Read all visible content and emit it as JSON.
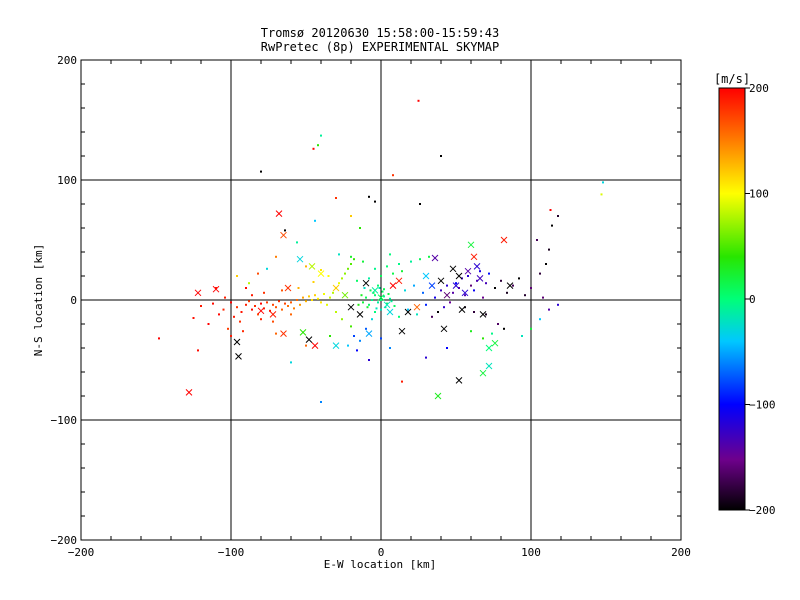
{
  "chart_data": {
    "type": "scatter",
    "title_line1": "Tromsø 20120630 15:58:00-15:59:43",
    "title_line2": "RwPretec (8p) EXPERIMENTAL SKYMAP",
    "xlabel": "E-W location [km]",
    "ylabel": "N-S location [km]",
    "xlim": [
      -200,
      200
    ],
    "ylim": [
      -200,
      200
    ],
    "xticks": [
      -200,
      -100,
      0,
      100,
      200
    ],
    "yticks": [
      -200,
      -100,
      0,
      100,
      200
    ],
    "x_tick_labels": [
      "−200",
      "−100",
      "0",
      "100",
      "200"
    ],
    "y_tick_labels": [
      "−200",
      "−100",
      "0",
      "100",
      "200"
    ],
    "grid": true,
    "colorbar": {
      "label": "[m/s]",
      "range": [
        -200,
        200
      ],
      "ticks": [
        200,
        100,
        0,
        -100,
        -200
      ],
      "tick_labels": [
        "200",
        "100",
        "0",
        "−100",
        "−200"
      ]
    },
    "markers": [
      "dot",
      "x"
    ],
    "points": [
      [
        -120,
        -5,
        190,
        "d"
      ],
      [
        -112,
        -3,
        195,
        "d"
      ],
      [
        -105,
        -8,
        185,
        "d"
      ],
      [
        -100,
        -2,
        200,
        "d"
      ],
      [
        -96,
        -6,
        180,
        "d"
      ],
      [
        -93,
        -10,
        192,
        "d"
      ],
      [
        -90,
        -4,
        188,
        "d"
      ],
      [
        -88,
        -1,
        176,
        "d"
      ],
      [
        -86,
        -8,
        196,
        "d"
      ],
      [
        -84,
        -5,
        184,
        "d"
      ],
      [
        -82,
        -12,
        170,
        "d"
      ],
      [
        -80,
        -3,
        198,
        "d"
      ],
      [
        -78,
        -7,
        186,
        "d"
      ],
      [
        -76,
        -2,
        178,
        "d"
      ],
      [
        -74,
        -9,
        190,
        "d"
      ],
      [
        -72,
        -4,
        174,
        "d"
      ],
      [
        -70,
        -6,
        168,
        "d"
      ],
      [
        -68,
        -1,
        182,
        "d"
      ],
      [
        -66,
        -8,
        160,
        "d"
      ],
      [
        -64,
        -3,
        172,
        "d"
      ],
      [
        -62,
        -5,
        156,
        "d"
      ],
      [
        -60,
        -2,
        164,
        "d"
      ],
      [
        -58,
        -7,
        150,
        "d"
      ],
      [
        -56,
        0,
        158,
        "d"
      ],
      [
        -54,
        -4,
        140,
        "d"
      ],
      [
        -52,
        2,
        136,
        "d"
      ],
      [
        -50,
        -1,
        128,
        "d"
      ],
      [
        -48,
        3,
        120,
        "d"
      ],
      [
        -46,
        0,
        112,
        "d"
      ],
      [
        -44,
        4,
        118,
        "d"
      ],
      [
        -42,
        1,
        104,
        "d"
      ],
      [
        -40,
        -2,
        108,
        "d"
      ],
      [
        -38,
        5,
        96,
        "d"
      ],
      [
        -98,
        -14,
        190,
        "d"
      ],
      [
        -94,
        -18,
        182,
        "d"
      ],
      [
        -108,
        -12,
        198,
        "d"
      ],
      [
        -115,
        -20,
        200,
        "d"
      ],
      [
        -125,
        -15,
        194,
        "d"
      ],
      [
        -102,
        -24,
        176,
        "d"
      ],
      [
        -80,
        -16,
        186,
        "d"
      ],
      [
        -72,
        -18,
        170,
        "d"
      ],
      [
        -60,
        -12,
        160,
        "d"
      ],
      [
        -86,
        4,
        190,
        "d"
      ],
      [
        -78,
        6,
        180,
        "d"
      ],
      [
        -66,
        8,
        166,
        "d"
      ],
      [
        -55,
        10,
        130,
        "d"
      ],
      [
        -90,
        10,
        196,
        "d"
      ],
      [
        -104,
        2,
        188,
        "d"
      ],
      [
        -148,
        -32,
        200,
        "d"
      ],
      [
        -122,
        -42,
        196,
        "d"
      ],
      [
        -100,
        -30,
        190,
        "d"
      ],
      [
        -92,
        -26,
        184,
        "d"
      ],
      [
        -70,
        -28,
        160,
        "d"
      ],
      [
        -36,
        -4,
        92,
        "d"
      ],
      [
        -34,
        2,
        86,
        "d"
      ],
      [
        -32,
        6,
        80,
        "d"
      ],
      [
        -30,
        10,
        88,
        "d"
      ],
      [
        -28,
        14,
        94,
        "d"
      ],
      [
        -26,
        18,
        76,
        "d"
      ],
      [
        -24,
        22,
        68,
        "d"
      ],
      [
        -22,
        26,
        60,
        "d"
      ],
      [
        -20,
        30,
        52,
        "d"
      ],
      [
        -18,
        34,
        44,
        "d"
      ],
      [
        -35,
        20,
        100,
        "d"
      ],
      [
        -40,
        25,
        110,
        "d"
      ],
      [
        -45,
        15,
        118,
        "d"
      ],
      [
        -50,
        28,
        130,
        "d"
      ],
      [
        -30,
        -10,
        82,
        "d"
      ],
      [
        -26,
        -16,
        70,
        "d"
      ],
      [
        -20,
        -22,
        48,
        "d"
      ],
      [
        -18,
        -30,
        -80,
        "d"
      ],
      [
        -14,
        -34,
        -60,
        "d"
      ],
      [
        -22,
        -38,
        -40,
        "d"
      ],
      [
        -10,
        -24,
        -72,
        "d"
      ],
      [
        -6,
        -16,
        -30,
        "d"
      ],
      [
        -12,
        -2,
        20,
        "d"
      ],
      [
        -10,
        2,
        12,
        "d"
      ],
      [
        -8,
        -4,
        8,
        "d"
      ],
      [
        -6,
        0,
        -6,
        "d"
      ],
      [
        -4,
        4,
        2,
        "d"
      ],
      [
        -2,
        -2,
        -12,
        "d"
      ],
      [
        0,
        0,
        0,
        "d"
      ],
      [
        2,
        3,
        -4,
        "d"
      ],
      [
        4,
        -3,
        10,
        "d"
      ],
      [
        6,
        1,
        -8,
        "d"
      ],
      [
        -5,
        6,
        16,
        "d"
      ],
      [
        -3,
        -7,
        -20,
        "d"
      ],
      [
        1,
        7,
        6,
        "d"
      ],
      [
        3,
        -6,
        -14,
        "d"
      ],
      [
        -9,
        -6,
        24,
        "d"
      ],
      [
        -7,
        8,
        14,
        "d"
      ],
      [
        5,
        5,
        18,
        "d"
      ],
      [
        7,
        -1,
        -10,
        "d"
      ],
      [
        -1,
        10,
        -16,
        "d"
      ],
      [
        -11,
        10,
        -24,
        "d"
      ],
      [
        -13,
        4,
        28,
        "d"
      ],
      [
        -15,
        -4,
        34,
        "d"
      ],
      [
        9,
        -5,
        8,
        "d"
      ],
      [
        -4,
        -10,
        -2,
        "d"
      ],
      [
        -2,
        12,
        4,
        "d"
      ],
      [
        0,
        -8,
        -18,
        "d"
      ],
      [
        2,
        9,
        12,
        "d"
      ],
      [
        -16,
        16,
        6,
        "d"
      ],
      [
        -8,
        18,
        -12,
        "d"
      ],
      [
        0,
        20,
        10,
        "d"
      ],
      [
        8,
        22,
        14,
        "d"
      ],
      [
        14,
        24,
        22,
        "d"
      ],
      [
        -4,
        26,
        -6,
        "d"
      ],
      [
        4,
        28,
        2,
        "d"
      ],
      [
        12,
        30,
        -4,
        "d"
      ],
      [
        20,
        32,
        -10,
        "d"
      ],
      [
        26,
        34,
        10,
        "d"
      ],
      [
        32,
        36,
        16,
        "d"
      ],
      [
        -12,
        32,
        20,
        "d"
      ],
      [
        -20,
        36,
        26,
        "d"
      ],
      [
        -28,
        38,
        -22,
        "d"
      ],
      [
        6,
        38,
        -2,
        "d"
      ],
      [
        16,
        8,
        -30,
        "d"
      ],
      [
        22,
        12,
        -50,
        "d"
      ],
      [
        28,
        6,
        -70,
        "d"
      ],
      [
        18,
        -8,
        -40,
        "d"
      ],
      [
        24,
        -12,
        -20,
        "d"
      ],
      [
        12,
        -14,
        0,
        "d"
      ],
      [
        30,
        -4,
        -90,
        "d"
      ],
      [
        36,
        2,
        -110,
        "d"
      ],
      [
        40,
        8,
        -130,
        "d"
      ],
      [
        44,
        12,
        -120,
        "d"
      ],
      [
        48,
        6,
        -140,
        "d"
      ],
      [
        50,
        14,
        -100,
        "d"
      ],
      [
        52,
        10,
        -150,
        "d"
      ],
      [
        54,
        18,
        -126,
        "d"
      ],
      [
        56,
        4,
        -136,
        "d"
      ],
      [
        58,
        20,
        -118,
        "d"
      ],
      [
        60,
        12,
        -160,
        "d"
      ],
      [
        62,
        8,
        -104,
        "d"
      ],
      [
        64,
        16,
        -140,
        "d"
      ],
      [
        66,
        24,
        -112,
        "d"
      ],
      [
        68,
        2,
        -150,
        "d"
      ],
      [
        70,
        14,
        -132,
        "d"
      ],
      [
        72,
        22,
        -96,
        "d"
      ],
      [
        76,
        10,
        -200,
        "d"
      ],
      [
        80,
        16,
        -180,
        "d"
      ],
      [
        84,
        6,
        -190,
        "d"
      ],
      [
        88,
        12,
        -170,
        "d"
      ],
      [
        92,
        18,
        -200,
        "d"
      ],
      [
        96,
        4,
        -184,
        "d"
      ],
      [
        100,
        10,
        -160,
        "d"
      ],
      [
        46,
        -2,
        -148,
        "d"
      ],
      [
        42,
        -6,
        -124,
        "d"
      ],
      [
        38,
        -10,
        -200,
        "d"
      ],
      [
        34,
        -14,
        -170,
        "d"
      ],
      [
        56,
        -6,
        -196,
        "d"
      ],
      [
        62,
        -10,
        -180,
        "d"
      ],
      [
        70,
        -12,
        -190,
        "d"
      ],
      [
        78,
        -20,
        -166,
        "d"
      ],
      [
        74,
        -28,
        -5,
        "d"
      ],
      [
        60,
        -26,
        30,
        "d"
      ],
      [
        68,
        -32,
        40,
        "d"
      ],
      [
        82,
        -24,
        -200,
        "d"
      ],
      [
        106,
        22,
        -180,
        "d"
      ],
      [
        110,
        30,
        -200,
        "d"
      ],
      [
        112,
        42,
        -190,
        "d"
      ],
      [
        104,
        50,
        -170,
        "d"
      ],
      [
        114,
        62,
        -200,
        "d"
      ],
      [
        118,
        70,
        -186,
        "d"
      ],
      [
        108,
        2,
        -160,
        "d"
      ],
      [
        112,
        -8,
        -140,
        "d"
      ],
      [
        106,
        -16,
        -40,
        "d"
      ],
      [
        100,
        -24,
        20,
        "d"
      ],
      [
        94,
        -30,
        -20,
        "d"
      ],
      [
        118,
        -4,
        -120,
        "d"
      ],
      [
        -80,
        107,
        -200,
        "d"
      ],
      [
        -45,
        126,
        200,
        "d"
      ],
      [
        -40,
        137,
        -10,
        "d"
      ],
      [
        -42,
        129,
        40,
        "d"
      ],
      [
        25,
        166,
        200,
        "d"
      ],
      [
        40,
        120,
        -200,
        "d"
      ],
      [
        -30,
        85,
        180,
        "d"
      ],
      [
        -8,
        86,
        -200,
        "d"
      ],
      [
        -4,
        82,
        -200,
        "d"
      ],
      [
        8,
        104,
        180,
        "d"
      ],
      [
        26,
        80,
        -200,
        "d"
      ],
      [
        -20,
        70,
        120,
        "d"
      ],
      [
        -44,
        66,
        -40,
        "d"
      ],
      [
        -14,
        60,
        40,
        "d"
      ],
      [
        -64,
        58,
        -200,
        "d"
      ],
      [
        -56,
        48,
        -10,
        "d"
      ],
      [
        -70,
        36,
        150,
        "d"
      ],
      [
        -82,
        22,
        170,
        "d"
      ],
      [
        148,
        98,
        -30,
        "d"
      ],
      [
        147,
        88,
        90,
        "d"
      ],
      [
        113,
        75,
        200,
        "d"
      ],
      [
        -40,
        -85,
        -60,
        "d"
      ],
      [
        -60,
        -52,
        -30,
        "d"
      ],
      [
        14,
        -68,
        190,
        "d"
      ],
      [
        -8,
        -50,
        -120,
        "d"
      ],
      [
        -16,
        -42,
        -100,
        "d"
      ],
      [
        0,
        -32,
        -80,
        "d"
      ],
      [
        6,
        -40,
        -60,
        "d"
      ],
      [
        30,
        -48,
        -120,
        "d"
      ],
      [
        44,
        -40,
        -100,
        "d"
      ],
      [
        -50,
        -38,
        160,
        "d"
      ],
      [
        -34,
        -30,
        40,
        "d"
      ],
      [
        -88,
        14,
        80,
        "d"
      ],
      [
        -96,
        20,
        120,
        "d"
      ],
      [
        -110,
        10,
        190,
        "d"
      ],
      [
        -76,
        26,
        -30,
        "d"
      ],
      [
        -128,
        -77,
        200,
        "x"
      ],
      [
        -122,
        6,
        200,
        "x"
      ],
      [
        -110,
        9,
        200,
        "x"
      ],
      [
        -96,
        -35,
        -200,
        "x"
      ],
      [
        -95,
        -47,
        -200,
        "x"
      ],
      [
        -80,
        -9,
        200,
        "x"
      ],
      [
        -72,
        -12,
        190,
        "x"
      ],
      [
        -65,
        -28,
        180,
        "x"
      ],
      [
        -52,
        -27,
        40,
        "x"
      ],
      [
        -48,
        -33,
        -200,
        "x"
      ],
      [
        -44,
        -38,
        200,
        "x"
      ],
      [
        -62,
        10,
        180,
        "x"
      ],
      [
        -68,
        72,
        200,
        "x"
      ],
      [
        -65,
        54,
        170,
        "x"
      ],
      [
        -54,
        34,
        -30,
        "x"
      ],
      [
        -46,
        28,
        80,
        "x"
      ],
      [
        -40,
        22,
        100,
        "x"
      ],
      [
        -30,
        10,
        120,
        "x"
      ],
      [
        -24,
        4,
        60,
        "x"
      ],
      [
        -20,
        -6,
        -200,
        "x"
      ],
      [
        -14,
        -12,
        -200,
        "x"
      ],
      [
        -10,
        14,
        -200,
        "x"
      ],
      [
        -4,
        8,
        -10,
        "x"
      ],
      [
        0,
        2,
        10,
        "x"
      ],
      [
        4,
        -4,
        -20,
        "x"
      ],
      [
        8,
        12,
        200,
        "x"
      ],
      [
        12,
        16,
        190,
        "x"
      ],
      [
        14,
        -26,
        -200,
        "x"
      ],
      [
        18,
        -10,
        -200,
        "x"
      ],
      [
        24,
        -6,
        160,
        "x"
      ],
      [
        30,
        20,
        -40,
        "x"
      ],
      [
        34,
        12,
        -80,
        "x"
      ],
      [
        36,
        35,
        -140,
        "x"
      ],
      [
        40,
        16,
        -200,
        "x"
      ],
      [
        42,
        -24,
        -200,
        "x"
      ],
      [
        44,
        4,
        -160,
        "x"
      ],
      [
        48,
        26,
        -200,
        "x"
      ],
      [
        50,
        12,
        -120,
        "x"
      ],
      [
        52,
        20,
        -200,
        "x"
      ],
      [
        54,
        -8,
        -200,
        "x"
      ],
      [
        56,
        6,
        -120,
        "x"
      ],
      [
        58,
        24,
        -140,
        "x"
      ],
      [
        60,
        46,
        20,
        "x"
      ],
      [
        62,
        36,
        190,
        "x"
      ],
      [
        64,
        28,
        -120,
        "x"
      ],
      [
        66,
        18,
        -130,
        "x"
      ],
      [
        68,
        -12,
        -200,
        "x"
      ],
      [
        72,
        -40,
        0,
        "x"
      ],
      [
        76,
        -36,
        20,
        "x"
      ],
      [
        82,
        50,
        190,
        "x"
      ],
      [
        86,
        12,
        -200,
        "x"
      ],
      [
        52,
        -67,
        -200,
        "x"
      ],
      [
        68,
        -61,
        20,
        "x"
      ],
      [
        72,
        -55,
        -20,
        "x"
      ],
      [
        38,
        -80,
        30,
        "x"
      ],
      [
        -30,
        -38,
        -30,
        "x"
      ],
      [
        -8,
        -28,
        -50,
        "x"
      ],
      [
        6,
        -10,
        -30,
        "x"
      ]
    ]
  }
}
